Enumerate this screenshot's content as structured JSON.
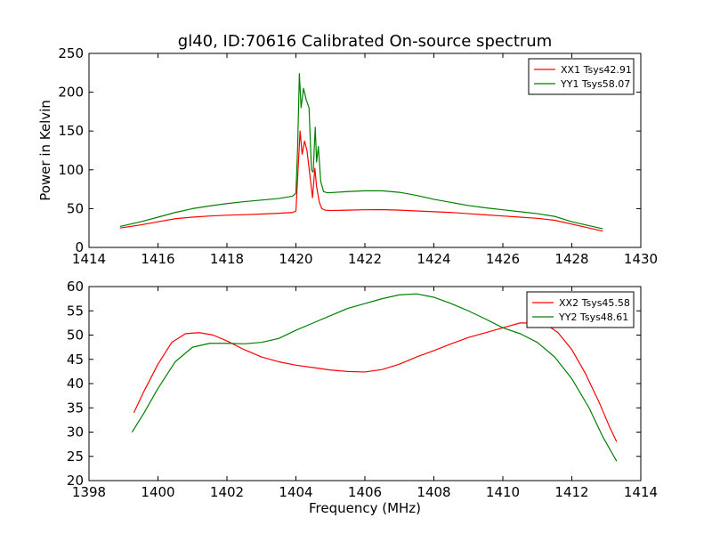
{
  "colors": {
    "xx": "#ff0000",
    "yy": "#008000"
  },
  "chart_data": [
    {
      "type": "line",
      "title": "gl40, ID:70616 Calibrated On-source spectrum",
      "xlabel": "",
      "ylabel": "Power in Kelvin",
      "xlim": [
        1414,
        1430
      ],
      "ylim": [
        0,
        250
      ],
      "xticks": [
        1414,
        1416,
        1418,
        1420,
        1422,
        1424,
        1426,
        1428,
        1430
      ],
      "yticks": [
        0,
        50,
        100,
        150,
        200,
        250
      ],
      "legend_position": "top-right",
      "series": [
        {
          "name": "XX1 Tsys42.91",
          "color": "#ff0000",
          "points": [
            [
              1414.9,
              25
            ],
            [
              1415.5,
              29
            ],
            [
              1416.0,
              33
            ],
            [
              1416.5,
              37
            ],
            [
              1417.0,
              39
            ],
            [
              1417.5,
              40.5
            ],
            [
              1418.0,
              41.5
            ],
            [
              1418.5,
              42.2
            ],
            [
              1419.0,
              43
            ],
            [
              1419.5,
              44
            ],
            [
              1419.9,
              45
            ],
            [
              1420.0,
              47
            ],
            [
              1420.05,
              90
            ],
            [
              1420.12,
              150
            ],
            [
              1420.18,
              120
            ],
            [
              1420.25,
              137
            ],
            [
              1420.32,
              125
            ],
            [
              1420.4,
              95
            ],
            [
              1420.48,
              64
            ],
            [
              1420.55,
              102
            ],
            [
              1420.6,
              78
            ],
            [
              1420.68,
              58
            ],
            [
              1420.75,
              50
            ],
            [
              1420.85,
              48
            ],
            [
              1421.0,
              47.5
            ],
            [
              1421.5,
              48
            ],
            [
              1422.0,
              48.5
            ],
            [
              1422.5,
              48.7
            ],
            [
              1423.0,
              48
            ],
            [
              1423.5,
              47
            ],
            [
              1424.0,
              46
            ],
            [
              1424.5,
              45
            ],
            [
              1425.0,
              43.5
            ],
            [
              1425.5,
              42
            ],
            [
              1426.0,
              40.5
            ],
            [
              1426.5,
              39
            ],
            [
              1427.0,
              37.5
            ],
            [
              1427.5,
              35
            ],
            [
              1428.0,
              30
            ],
            [
              1428.5,
              25
            ],
            [
              1428.9,
              21
            ]
          ]
        },
        {
          "name": "YY1 Tsys58.07",
          "color": "#008000",
          "points": [
            [
              1414.9,
              27
            ],
            [
              1415.5,
              33
            ],
            [
              1416.0,
              39
            ],
            [
              1416.5,
              45
            ],
            [
              1417.0,
              50
            ],
            [
              1417.5,
              53.5
            ],
            [
              1418.0,
              56.5
            ],
            [
              1418.5,
              59
            ],
            [
              1419.0,
              61
            ],
            [
              1419.5,
              63
            ],
            [
              1419.9,
              66
            ],
            [
              1420.0,
              70
            ],
            [
              1420.05,
              130
            ],
            [
              1420.1,
              224
            ],
            [
              1420.15,
              180
            ],
            [
              1420.22,
              205
            ],
            [
              1420.3,
              190
            ],
            [
              1420.38,
              180
            ],
            [
              1420.45,
              100
            ],
            [
              1420.5,
              97
            ],
            [
              1420.56,
              155
            ],
            [
              1420.6,
              110
            ],
            [
              1420.65,
              130
            ],
            [
              1420.72,
              85
            ],
            [
              1420.8,
              72
            ],
            [
              1420.9,
              70.5
            ],
            [
              1421.0,
              70.5
            ],
            [
              1421.5,
              72
            ],
            [
              1422.0,
              73
            ],
            [
              1422.5,
              73
            ],
            [
              1423.0,
              71
            ],
            [
              1423.5,
              67
            ],
            [
              1424.0,
              62
            ],
            [
              1424.5,
              58
            ],
            [
              1425.0,
              54
            ],
            [
              1425.5,
              51
            ],
            [
              1426.0,
              48.5
            ],
            [
              1426.5,
              46
            ],
            [
              1427.0,
              43.5
            ],
            [
              1427.5,
              40
            ],
            [
              1428.0,
              33
            ],
            [
              1428.5,
              28
            ],
            [
              1428.9,
              24
            ]
          ]
        }
      ]
    },
    {
      "type": "line",
      "title": "",
      "xlabel": "Frequency (MHz)",
      "ylabel": "",
      "xlim": [
        1398,
        1414
      ],
      "ylim": [
        20,
        60
      ],
      "xticks": [
        1398,
        1400,
        1402,
        1404,
        1406,
        1408,
        1410,
        1412,
        1414
      ],
      "yticks": [
        20,
        25,
        30,
        35,
        40,
        45,
        50,
        55,
        60
      ],
      "legend_position": "top-right",
      "series": [
        {
          "name": "XX2 Tsys45.58",
          "color": "#ff0000",
          "points": [
            [
              1399.3,
              34
            ],
            [
              1399.6,
              38.5
            ],
            [
              1400.0,
              44
            ],
            [
              1400.4,
              48.5
            ],
            [
              1400.8,
              50.3
            ],
            [
              1401.2,
              50.5
            ],
            [
              1401.6,
              50
            ],
            [
              1402.0,
              48.8
            ],
            [
              1402.5,
              47
            ],
            [
              1403.0,
              45.5
            ],
            [
              1403.5,
              44.5
            ],
            [
              1404.0,
              43.8
            ],
            [
              1404.5,
              43.3
            ],
            [
              1405.0,
              42.8
            ],
            [
              1405.5,
              42.5
            ],
            [
              1406.0,
              42.4
            ],
            [
              1406.5,
              42.9
            ],
            [
              1407.0,
              44
            ],
            [
              1407.5,
              45.5
            ],
            [
              1408.0,
              46.8
            ],
            [
              1408.5,
              48.2
            ],
            [
              1409.0,
              49.5
            ],
            [
              1409.5,
              50.5
            ],
            [
              1410.0,
              51.5
            ],
            [
              1410.5,
              52.5
            ],
            [
              1411.0,
              52.5
            ],
            [
              1411.3,
              52
            ],
            [
              1411.6,
              50.5
            ],
            [
              1412.0,
              47
            ],
            [
              1412.4,
              42
            ],
            [
              1412.8,
              36
            ],
            [
              1413.1,
              31
            ],
            [
              1413.3,
              28
            ]
          ]
        },
        {
          "name": "YY2 Tsys48.61",
          "color": "#008000",
          "points": [
            [
              1399.25,
              30
            ],
            [
              1399.6,
              34
            ],
            [
              1400.0,
              39
            ],
            [
              1400.5,
              44.5
            ],
            [
              1401.0,
              47.5
            ],
            [
              1401.5,
              48.3
            ],
            [
              1402.0,
              48.3
            ],
            [
              1402.5,
              48.2
            ],
            [
              1403.0,
              48.5
            ],
            [
              1403.5,
              49.3
            ],
            [
              1404.0,
              51
            ],
            [
              1404.5,
              52.5
            ],
            [
              1405.0,
              54
            ],
            [
              1405.5,
              55.5
            ],
            [
              1406.0,
              56.5
            ],
            [
              1406.5,
              57.5
            ],
            [
              1407.0,
              58.3
            ],
            [
              1407.5,
              58.5
            ],
            [
              1408.0,
              57.8
            ],
            [
              1408.5,
              56.5
            ],
            [
              1409.0,
              55
            ],
            [
              1409.5,
              53.3
            ],
            [
              1410.0,
              51.5
            ],
            [
              1410.5,
              50.3
            ],
            [
              1411.0,
              48.5
            ],
            [
              1411.5,
              45.5
            ],
            [
              1412.0,
              41
            ],
            [
              1412.5,
              35
            ],
            [
              1412.9,
              29
            ],
            [
              1413.3,
              24
            ]
          ]
        }
      ]
    }
  ]
}
